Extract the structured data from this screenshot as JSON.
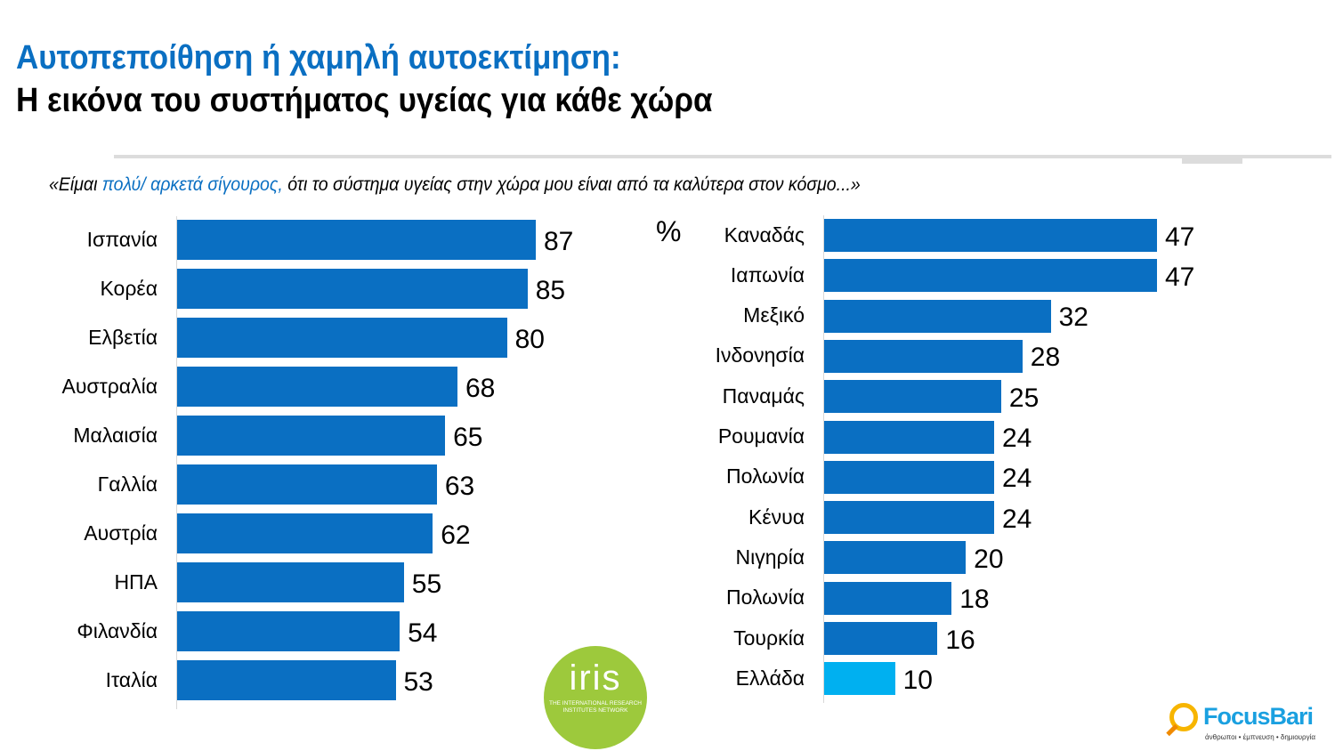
{
  "header": {
    "title_line1": "Αυτοπεποίθηση ή χαμηλή αυτοεκτίμηση:",
    "title_line2": "Η εικόνα του συστήματος υγείας για κάθε χώρα"
  },
  "subtitle": {
    "prefix": "«Είμαι ",
    "highlight": "πολύ/ αρκετά σίγουρος,",
    "suffix": " ότι το σύστημα υγείας στην χώρα μου είναι από τα καλύτερα στον κόσμο...»"
  },
  "unit_label": "%",
  "logos": {
    "iris_word": "iris",
    "iris_sub": "THE INTERNATIONAL RESEARCH INSTITUTES NETWORK",
    "focusbari_name": "FocusBari",
    "focusbari_tagline": "άνθρωποι • έμπνευση • δημιουργία"
  },
  "chart_data": [
    {
      "type": "bar",
      "orientation": "horizontal",
      "title": "",
      "xlabel": "",
      "ylabel": "",
      "xlim": [
        0,
        100
      ],
      "categories": [
        "Ισπανία",
        "Κορέα",
        "Ελβετία",
        "Αυστραλία",
        "Μαλαισία",
        "Γαλλία",
        "Αυστρία",
        "ΗΠΑ",
        "Φιλανδία",
        "Ιταλία"
      ],
      "values": [
        87,
        85,
        80,
        68,
        65,
        63,
        62,
        55,
        54,
        53
      ],
      "colors": [
        "#0a6fc2",
        "#0a6fc2",
        "#0a6fc2",
        "#0a6fc2",
        "#0a6fc2",
        "#0a6fc2",
        "#0a6fc2",
        "#0a6fc2",
        "#0a6fc2",
        "#0a6fc2"
      ]
    },
    {
      "type": "bar",
      "orientation": "horizontal",
      "title": "",
      "xlabel": "%",
      "ylabel": "",
      "xlim": [
        0,
        60
      ],
      "categories": [
        "Καναδάς",
        "Ιαπωνία",
        "Μεξικό",
        "Ινδονησία",
        "Παναμάς",
        "Ρουμανία",
        "Πολωνία",
        "Κένυα",
        "Νιγηρία",
        "Πολωνία",
        "Τουρκία",
        "Ελλάδα"
      ],
      "values": [
        47,
        47,
        32,
        28,
        25,
        24,
        24,
        24,
        20,
        18,
        16,
        10
      ],
      "colors": [
        "#0a6fc2",
        "#0a6fc2",
        "#0a6fc2",
        "#0a6fc2",
        "#0a6fc2",
        "#0a6fc2",
        "#0a6fc2",
        "#0a6fc2",
        "#0a6fc2",
        "#0a6fc2",
        "#0a6fc2",
        "#00b0f0"
      ]
    }
  ]
}
